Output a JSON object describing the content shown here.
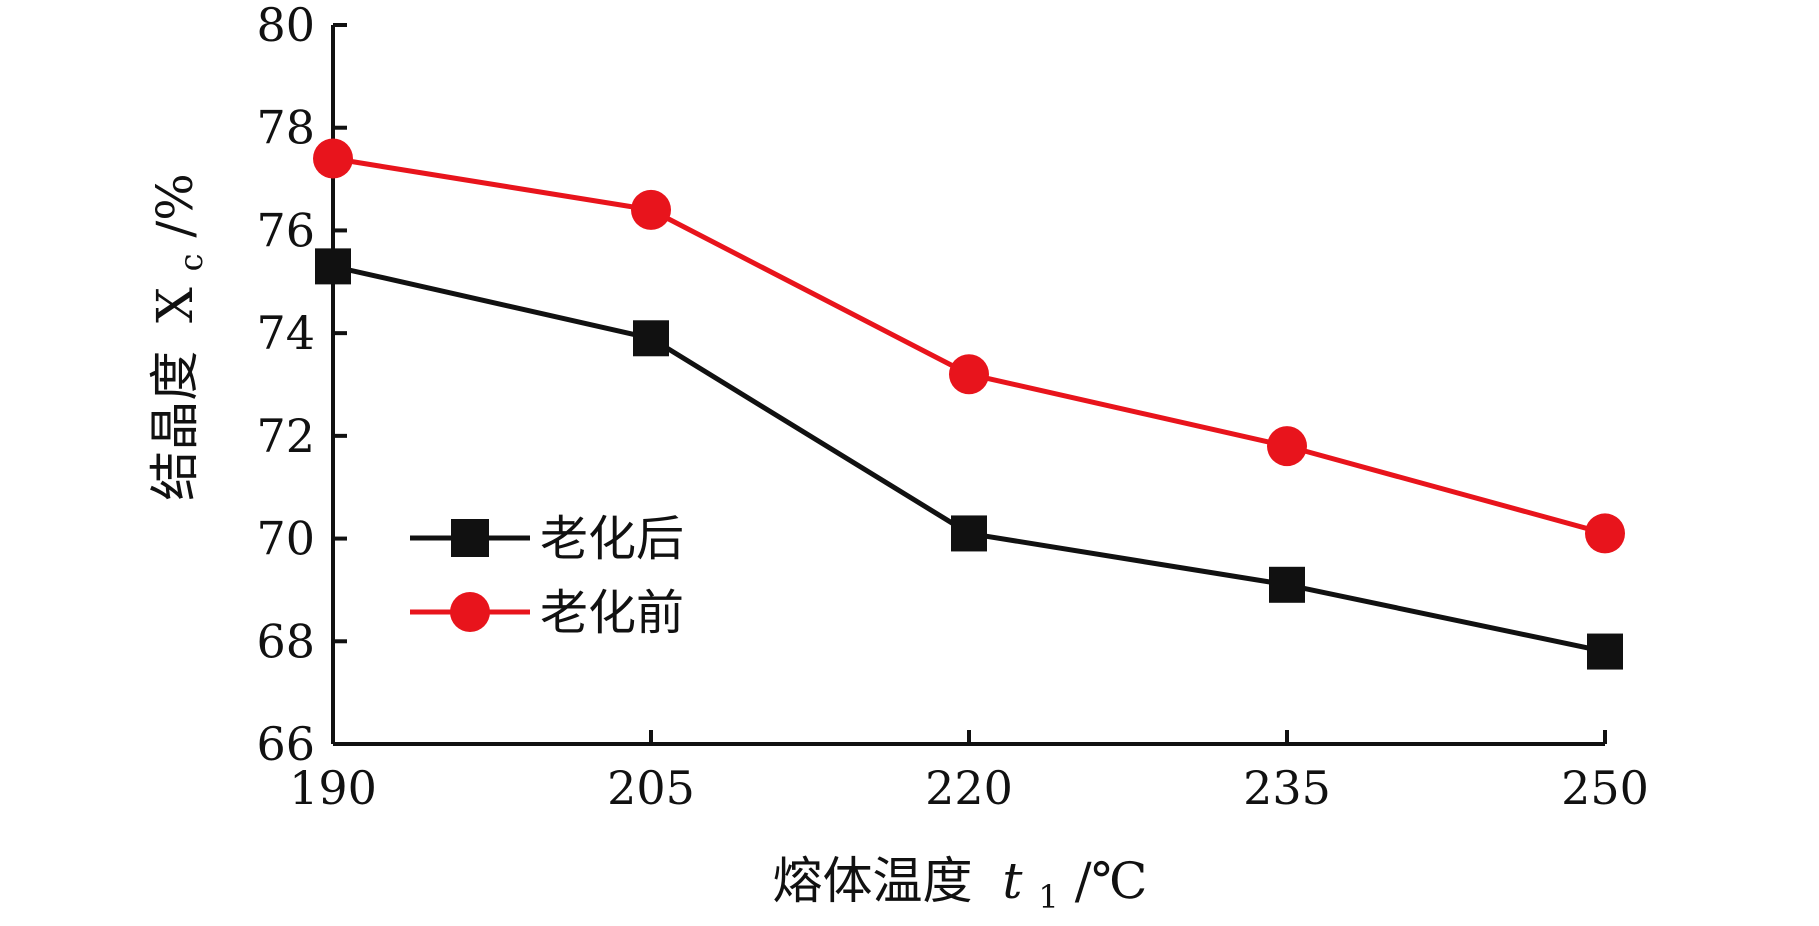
{
  "chart_data": {
    "type": "line",
    "title": "",
    "x": [
      190,
      205,
      220,
      235,
      250
    ],
    "xlabel_main": "熔体温度",
    "xlabel_symbol": "t",
    "xlabel_subscript": "1",
    "xlabel_unit": "/℃",
    "ylabel_main": "结晶度",
    "ylabel_symbol": "X",
    "ylabel_subscript": "c",
    "ylabel_unit": "/%",
    "xlim": [
      190,
      250
    ],
    "ylim": [
      66,
      80
    ],
    "xticks": [
      "190",
      "205",
      "220",
      "235",
      "250"
    ],
    "yticks": [
      "66",
      "68",
      "70",
      "72",
      "74",
      "76",
      "78",
      "80"
    ],
    "grid": false,
    "legend_position": "center-left",
    "series": [
      {
        "name": "老化后",
        "marker": "square",
        "color": "#111111",
        "values": [
          75.3,
          73.9,
          70.1,
          69.1,
          67.8
        ]
      },
      {
        "name": "老化前",
        "marker": "circle",
        "color": "#e8141c",
        "values": [
          77.4,
          76.4,
          73.2,
          71.8,
          70.1
        ]
      }
    ]
  }
}
